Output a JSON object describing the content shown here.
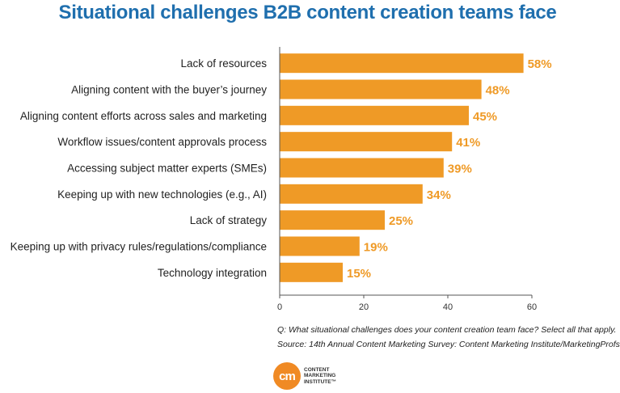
{
  "chart_data": {
    "type": "bar",
    "orientation": "horizontal",
    "title": "Situational challenges B2B content creation teams face",
    "categories": [
      "Lack of resources",
      "Aligning content with the buyer’s journey",
      "Aligning content efforts across sales and marketing",
      "Workflow issues/content approvals process",
      "Accessing subject matter experts (SMEs)",
      "Keeping up with new technologies (e.g., AI)",
      "Lack of strategy",
      "Keeping up with privacy rules/regulations/compliance",
      "Technology integration"
    ],
    "values": [
      58,
      48,
      45,
      41,
      39,
      34,
      25,
      19,
      15
    ],
    "value_labels": [
      "58%",
      "48%",
      "45%",
      "41%",
      "39%",
      "34%",
      "25%",
      "19%",
      "15%"
    ],
    "xlim": [
      0,
      60
    ],
    "x_ticks": [
      0,
      20,
      40,
      60
    ],
    "x_tick_labels": [
      "0",
      "20",
      "40",
      "60"
    ],
    "xlabel": "",
    "ylabel": "",
    "grid": false,
    "bar_color": "#ef9a26",
    "label_color": "#ef9a26",
    "title_color": "#1f6fae"
  },
  "notes": {
    "question": "Q: What situational challenges does your content creation team face? Select all that apply.",
    "source": "Source: 14th Annual Content Marketing Survey: Content Marketing Institute/MarketingProfs"
  },
  "logo": {
    "badge_text": "cm",
    "line1": "CONTENT",
    "line2": "MARKETING",
    "line3": "INSTITUTE™"
  }
}
